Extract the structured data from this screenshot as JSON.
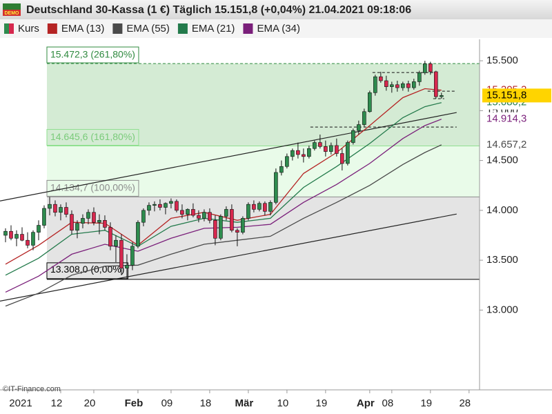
{
  "header": {
    "badge": "DEMO",
    "title": "Deutschland 30-Kassa (1 €) Täglich 15.151,8 (+0,04%) 21.04.2021 09:18:06"
  },
  "footer": "©IT-Finance.com",
  "chart_data": {
    "type": "candlestick",
    "xlim": [
      1,
      87.9
    ],
    "ylim": [
      12200,
      15715
    ],
    "xticks": [
      {
        "value": 6,
        "label": "2021"
      },
      {
        "value": 12,
        "label": "12"
      },
      {
        "value": 18,
        "label": "20"
      },
      {
        "value": 26,
        "label": "Feb"
      },
      {
        "value": 32,
        "label": "09"
      },
      {
        "value": 39,
        "label": "18"
      },
      {
        "value": 46,
        "label": "Mär"
      },
      {
        "value": 53,
        "label": "10"
      },
      {
        "value": 60,
        "label": "19"
      },
      {
        "value": 68,
        "label": "Apr"
      },
      {
        "value": 72,
        "label": "08"
      },
      {
        "value": 79,
        "label": "19"
      },
      {
        "value": 86,
        "label": "28"
      }
    ],
    "yticks": [
      {
        "value": 13000,
        "label": "13.000"
      },
      {
        "value": 13500,
        "label": "13.500"
      },
      {
        "value": 14000,
        "label": "14.000"
      },
      {
        "value": 14500,
        "label": "14.500"
      },
      {
        "value": 15000,
        "label": "15.000"
      },
      {
        "value": 15500,
        "label": "15.500"
      }
    ],
    "candles": {
      "name": "Kurs",
      "up_color": "#2e8b4e",
      "down_color": "#d6284e",
      "x": [
        2,
        3,
        4,
        5,
        6,
        7,
        8,
        9,
        10,
        11,
        12,
        13,
        14,
        15,
        16,
        17,
        18,
        19,
        20,
        21,
        22,
        23,
        24,
        25,
        26,
        27,
        28,
        29,
        30,
        31,
        32,
        33,
        34,
        35,
        36,
        37,
        38,
        39,
        40,
        41,
        42,
        43,
        44,
        45,
        46,
        47,
        48,
        49,
        50,
        51,
        52,
        53,
        54,
        55,
        56,
        57,
        58,
        59,
        60,
        61,
        62,
        63,
        64,
        65,
        66,
        67,
        68,
        69,
        70,
        71,
        72,
        73,
        74,
        75,
        76,
        77,
        78,
        79,
        80,
        81
      ],
      "open": [
        13750,
        13790,
        13720,
        13760,
        13700,
        13650,
        13780,
        13850,
        14020,
        14060,
        13980,
        14030,
        13960,
        13800,
        13870,
        13920,
        13980,
        13880,
        13900,
        13830,
        13640,
        13700,
        13420,
        13450,
        13640,
        13880,
        14000,
        14050,
        14060,
        14030,
        14070,
        14090,
        14000,
        13960,
        14010,
        13950,
        13920,
        13980,
        13900,
        13720,
        13940,
        14010,
        13800,
        13780,
        13920,
        14060,
        14010,
        14070,
        13990,
        14080,
        14380,
        14440,
        14540,
        14600,
        14560,
        14540,
        14620,
        14680,
        14640,
        14590,
        14650,
        14570,
        14470,
        14680,
        14800,
        14860,
        14990,
        15180,
        15340,
        15300,
        15240,
        15260,
        15230,
        15270,
        15230,
        15290,
        15380,
        15470,
        15390,
        15140
      ],
      "high": [
        13820,
        13850,
        13800,
        13830,
        13780,
        13800,
        13900,
        14050,
        14134,
        14100,
        14060,
        14080,
        14000,
        13900,
        13960,
        14010,
        14030,
        13960,
        13950,
        13880,
        13750,
        13760,
        13560,
        13680,
        13900,
        14020,
        14080,
        14090,
        14110,
        14080,
        14120,
        14110,
        14060,
        14020,
        14070,
        14000,
        14010,
        14020,
        13950,
        13960,
        14040,
        14060,
        13820,
        13940,
        14080,
        14100,
        14090,
        14090,
        14100,
        14420,
        14500,
        14570,
        14620,
        14680,
        14620,
        14650,
        14700,
        14760,
        14700,
        14680,
        14720,
        14620,
        14700,
        14820,
        14900,
        15020,
        15200,
        15360,
        15390,
        15350,
        15290,
        15300,
        15290,
        15300,
        15320,
        15400,
        15500,
        15490,
        15400,
        15180
      ],
      "low": [
        13680,
        13700,
        13640,
        13690,
        13620,
        13600,
        13700,
        13820,
        13950,
        13940,
        13900,
        13930,
        13760,
        13720,
        13820,
        13860,
        13850,
        13760,
        13800,
        13600,
        13480,
        13350,
        13308,
        13400,
        13620,
        13840,
        13950,
        13990,
        14000,
        13960,
        14020,
        13980,
        13920,
        13900,
        13930,
        13880,
        13890,
        13870,
        13650,
        13700,
        13900,
        13780,
        13640,
        13760,
        13900,
        13980,
        13990,
        13950,
        13950,
        14060,
        14350,
        14420,
        14500,
        14520,
        14480,
        14520,
        14600,
        14620,
        14540,
        14560,
        14540,
        14400,
        14450,
        14660,
        14760,
        14840,
        14980,
        15150,
        15280,
        15200,
        15180,
        15190,
        15200,
        15190,
        15210,
        15250,
        15360,
        15360,
        15120,
        15120
      ],
      "close": [
        13790,
        13720,
        13760,
        13700,
        13650,
        13780,
        13850,
        14020,
        14060,
        13980,
        14030,
        13960,
        13800,
        13870,
        13920,
        13980,
        13880,
        13900,
        13830,
        13640,
        13700,
        13420,
        13450,
        13640,
        13880,
        14000,
        14050,
        14060,
        14030,
        14070,
        14090,
        14000,
        13960,
        14010,
        13950,
        13920,
        13980,
        13900,
        13720,
        13940,
        14010,
        13800,
        13780,
        13920,
        14060,
        14010,
        14070,
        13990,
        14080,
        14380,
        14440,
        14540,
        14600,
        14560,
        14540,
        14620,
        14680,
        14640,
        14590,
        14650,
        14570,
        14470,
        14680,
        14800,
        14860,
        14990,
        15180,
        15340,
        15300,
        15240,
        15260,
        15230,
        15270,
        15230,
        15290,
        15380,
        15470,
        15390,
        15140,
        15151.8
      ],
      "value_labels": [
        null,
        null,
        null,
        null,
        null,
        null,
        null,
        null,
        null,
        null,
        null,
        null,
        null,
        null,
        null,
        null,
        null,
        null,
        null,
        null,
        null,
        null,
        null,
        null,
        null,
        null,
        null,
        null,
        null,
        null,
        null,
        null,
        null,
        null,
        null,
        null,
        null,
        null,
        null,
        null,
        null,
        null,
        null,
        null,
        null,
        null,
        null,
        null,
        null,
        null,
        null,
        null,
        null,
        null,
        null,
        null,
        null,
        null,
        null,
        null,
        null,
        null,
        null,
        null,
        null,
        null,
        null,
        null,
        null,
        null,
        null,
        null,
        null,
        null,
        null,
        null,
        null,
        null,
        null,
        "15.151,8"
      ]
    },
    "series": [
      {
        "name": "EMA (55)",
        "color": "#4a4a4a",
        "x": [
          2,
          8,
          14,
          20,
          26,
          32,
          38,
          44,
          50,
          56,
          62,
          68,
          74,
          78,
          81
        ],
        "values": [
          13040,
          13170,
          13350,
          13440,
          13450,
          13560,
          13660,
          13700,
          13740,
          13920,
          14080,
          14250,
          14460,
          14580,
          14657.2
        ],
        "value_labels": [
          null,
          null,
          null,
          null,
          null,
          null,
          null,
          null,
          null,
          null,
          null,
          null,
          null,
          null,
          "14.657,2"
        ]
      },
      {
        "name": "EMA (34)",
        "color": "#7a1f7a",
        "x": [
          2,
          8,
          14,
          20,
          26,
          32,
          38,
          44,
          50,
          56,
          62,
          68,
          74,
          78,
          81
        ],
        "values": [
          13180,
          13340,
          13560,
          13660,
          13590,
          13720,
          13820,
          13830,
          13860,
          14080,
          14260,
          14470,
          14720,
          14850,
          14914.3
        ],
        "value_labels": [
          null,
          null,
          null,
          null,
          null,
          null,
          null,
          null,
          null,
          null,
          null,
          null,
          null,
          null,
          "14.914,3"
        ]
      },
      {
        "name": "EMA (21)",
        "color": "#237a4b",
        "x": [
          2,
          8,
          14,
          20,
          26,
          32,
          38,
          44,
          50,
          56,
          62,
          68,
          74,
          78,
          81
        ],
        "values": [
          13350,
          13520,
          13760,
          13800,
          13640,
          13840,
          13920,
          13880,
          13920,
          14230,
          14440,
          14670,
          14930,
          15040,
          15080.2
        ],
        "value_labels": [
          null,
          null,
          null,
          null,
          null,
          null,
          null,
          null,
          null,
          null,
          null,
          null,
          null,
          null,
          "15.080,2"
        ]
      },
      {
        "name": "EMA (13)",
        "color": "#b52424",
        "x": [
          2,
          8,
          14,
          20,
          26,
          32,
          38,
          44,
          50,
          56,
          62,
          68,
          74,
          78,
          81
        ],
        "values": [
          13460,
          13650,
          13880,
          13870,
          13650,
          13920,
          13980,
          13900,
          13960,
          14370,
          14580,
          14850,
          15130,
          15220,
          15205.2
        ],
        "value_labels": [
          null,
          null,
          null,
          null,
          null,
          null,
          null,
          null,
          null,
          null,
          null,
          null,
          null,
          null,
          "15.205,2"
        ]
      }
    ],
    "legend_order": [
      3,
      0,
      2,
      1
    ],
    "fib_start": 9.5,
    "levels": [
      {
        "value": 15472.3,
        "label": "15.472,3 (261,80%)",
        "color": "#2f8a3f",
        "zone": "#d4ebd4"
      },
      {
        "value": 14645.6,
        "label": "14.645,6 (161,80%)",
        "color": "#8fe08f",
        "zone": "#e9fbe9"
      },
      {
        "value": 14134.7,
        "label": "14.134,7 (100,00%)",
        "color": "#8c8c8c",
        "zone": "#e4e4e4"
      },
      {
        "value": 13308.0,
        "label": "13.308,0 (0,00%)",
        "color": "#000000",
        "zone": null
      }
    ],
    "trendlines": [
      {
        "x": [
          1,
          83.75
        ],
        "y": [
          14094,
          14981
        ]
      },
      {
        "x": [
          1,
          83.75
        ],
        "y": [
          13090,
          13963
        ]
      }
    ],
    "dashed_lines": [
      {
        "x": [
          68.5,
          79.5
        ],
        "y": 15382
      },
      {
        "x": [
          78.5,
          83.75
        ],
        "y": 15195
      },
      {
        "x": [
          57.25,
          83.75
        ],
        "y": 14835
      },
      {
        "x": [
          79.5,
          81.5
        ],
        "y": 15120
      }
    ]
  }
}
